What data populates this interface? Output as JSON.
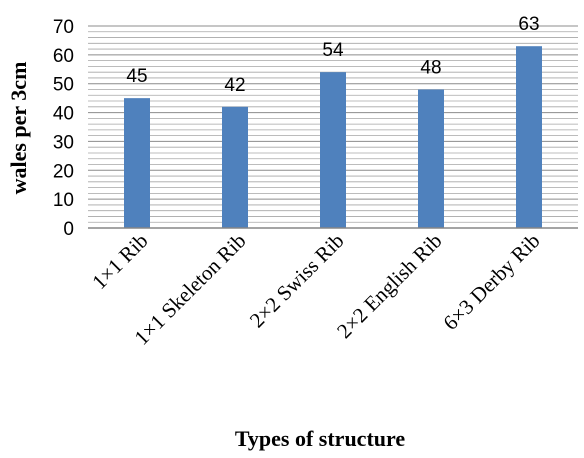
{
  "chart_data": {
    "type": "bar",
    "categories": [
      "1×1 Rib",
      "1×1 Skeleton Rib",
      "2×2 Swiss Rib",
      "2×2  English Rib",
      "6×3 Derby Rib"
    ],
    "values": [
      45,
      42,
      54,
      48,
      63
    ],
    "data_labels": [
      "45",
      "42",
      "54",
      "48",
      "63"
    ],
    "xlabel": "Types of structure",
    "ylabel": "wales per 3cm",
    "ylim": [
      0,
      70
    ],
    "yticks": [
      "0",
      "10",
      "20",
      "30",
      "40",
      "50",
      "60",
      "70"
    ],
    "bar_color": "#4F81BD",
    "grid": true,
    "legend": "none"
  }
}
